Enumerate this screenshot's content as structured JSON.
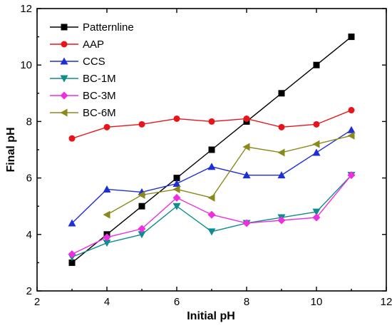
{
  "chart_data": {
    "type": "line",
    "title": "",
    "xlabel": "Initial pH",
    "ylabel": "Final pH",
    "xlim": [
      2,
      12
    ],
    "ylim": [
      2,
      12
    ],
    "xticks": [
      2,
      4,
      6,
      8,
      10,
      12
    ],
    "yticks": [
      2,
      4,
      6,
      8,
      10,
      12
    ],
    "grid": false,
    "legend_position": "top-left",
    "series": [
      {
        "name": "Patternline",
        "color": "#000000",
        "marker": "square",
        "x": [
          3,
          4,
          5,
          6,
          7,
          8,
          9,
          10,
          11
        ],
        "y": [
          3,
          4,
          5,
          6,
          7,
          8,
          9,
          10,
          11
        ]
      },
      {
        "name": "AAP",
        "color": "#e8141b",
        "marker": "circle",
        "x": [
          3,
          4,
          5,
          6,
          7,
          8,
          9,
          10,
          11
        ],
        "y": [
          7.4,
          7.8,
          7.9,
          8.1,
          8.0,
          8.1,
          7.8,
          7.9,
          8.4
        ]
      },
      {
        "name": "CCS",
        "color": "#1f2fd6",
        "marker": "triangle-up",
        "x": [
          3,
          4,
          5,
          6,
          7,
          8,
          9,
          10,
          11
        ],
        "y": [
          4.4,
          5.6,
          5.5,
          5.8,
          6.4,
          6.1,
          6.1,
          6.9,
          7.7
        ]
      },
      {
        "name": "BC-1M",
        "color": "#0f8c8c",
        "marker": "triangle-down",
        "x": [
          3,
          4,
          5,
          6,
          7,
          8,
          9,
          10,
          11
        ],
        "y": [
          3.2,
          3.7,
          4.0,
          5.0,
          4.1,
          4.4,
          4.6,
          4.8,
          6.1
        ]
      },
      {
        "name": "BC-3M",
        "color": "#ee2ee0",
        "marker": "diamond",
        "x": [
          3,
          4,
          5,
          6,
          7,
          8,
          9,
          10,
          11
        ],
        "y": [
          3.3,
          3.9,
          4.2,
          5.3,
          4.7,
          4.4,
          4.5,
          4.6,
          6.1
        ]
      },
      {
        "name": "BC-6M",
        "color": "#8a8a1a",
        "marker": "triangle-left",
        "x": [
          4,
          5,
          6,
          7,
          8,
          9,
          10,
          11
        ],
        "y": [
          4.7,
          5.4,
          5.6,
          5.3,
          7.1,
          6.9,
          7.2,
          7.5
        ]
      }
    ]
  }
}
